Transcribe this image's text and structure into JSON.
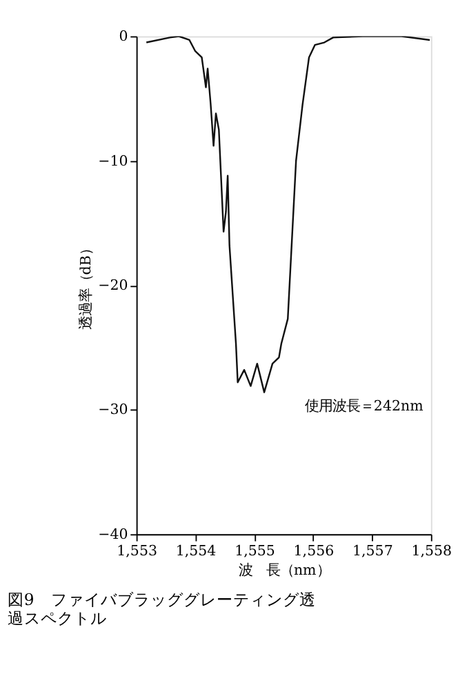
{
  "chart_data": {
    "type": "line",
    "title": "図9　ファイバブラッググレーティング透過スペクトル",
    "xlabel": "波　長（nm）",
    "ylabel": "透過率（dB）",
    "annotations": [
      "使用波長＝242nm"
    ],
    "x": [
      1553.17,
      1553.57,
      1553.72,
      1553.9,
      1554.0,
      1554.11,
      1554.18,
      1554.21,
      1554.26,
      1554.31,
      1554.35,
      1554.4,
      1554.48,
      1554.52,
      1554.55,
      1554.58,
      1554.69,
      1554.72,
      1554.83,
      1554.94,
      1555.05,
      1555.17,
      1555.31,
      1555.42,
      1555.46,
      1555.57,
      1555.71,
      1555.82,
      1555.93,
      1556.03,
      1556.19,
      1556.34,
      1556.84,
      1557.5,
      1557.98
    ],
    "series": [
      {
        "color": "#111111",
        "values": [
          -0.5,
          -0.1,
          0,
          -0.3,
          -1.2,
          -1.7,
          -4.1,
          -2.6,
          -5.4,
          -8.8,
          -6.2,
          -7.5,
          -15.7,
          -14.1,
          -11.2,
          -16.8,
          -24.7,
          -27.8,
          -26.8,
          -28.1,
          -26.3,
          -28.6,
          -26.3,
          -25.8,
          -24.7,
          -22.7,
          -10,
          -5.5,
          -1.7,
          -0.7,
          -0.5,
          -0.1,
          0,
          0,
          -0.3
        ]
      }
    ],
    "xlim": [
      1553,
      1558
    ],
    "ylim": [
      -40,
      0
    ],
    "xticks": [
      {
        "value": 1553,
        "label": "1,553"
      },
      {
        "value": 1554,
        "label": "1,554"
      },
      {
        "value": 1555,
        "label": "1,555"
      },
      {
        "value": 1556,
        "label": "1,556"
      },
      {
        "value": 1557,
        "label": "1,557"
      },
      {
        "value": 1558,
        "label": "1,558"
      }
    ],
    "yticks": [
      {
        "value": -40,
        "label": "−40"
      },
      {
        "value": -30,
        "label": "−30"
      },
      {
        "value": -20,
        "label": "−20"
      },
      {
        "value": -10,
        "label": "−10"
      },
      0
    ],
    "grid": false,
    "marker": "none",
    "line_style": "solid"
  }
}
